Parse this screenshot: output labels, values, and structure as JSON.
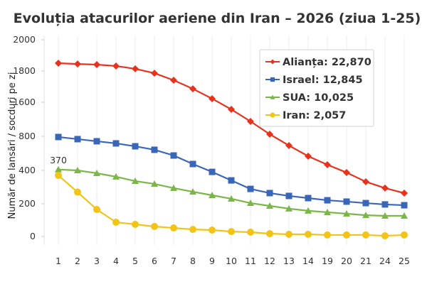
{
  "chart_data": {
    "type": "line",
    "title": "Evoluția atacurilor aeriene din Iran – 2026 (ziua 1-25)",
    "xlabel": "",
    "ylabel": "Număr de lansări / socduri pe zi",
    "categories": [
      "1",
      "2",
      "3",
      "4",
      "5",
      "6",
      "7",
      "8",
      "9",
      "10",
      "11",
      "12",
      "13",
      "14",
      "19",
      "20",
      "21",
      "24",
      "25"
    ],
    "y_ticks": [
      0,
      200,
      400,
      800,
      1600,
      1800,
      2000
    ],
    "y_tick_labels": [
      "0",
      "200",
      "400",
      "800",
      "1600",
      "1800",
      "2000"
    ],
    "ylim": [
      0,
      2000
    ],
    "grid": "vertical",
    "legend_position": "top-right",
    "annotation": "370",
    "series": [
      {
        "name": "Alianța: 22,870",
        "color": "#e8321e",
        "marker": "diamond",
        "values": [
          1850,
          1845,
          1841,
          1832,
          1814,
          1786,
          1741,
          1686,
          1623,
          1433,
          1150,
          850,
          692,
          567,
          467,
          387,
          332,
          294,
          264
        ]
      },
      {
        "name": "Israel: 12,845",
        "color": "#3a66b8",
        "marker": "square",
        "values": [
          792,
          767,
          742,
          717,
          683,
          642,
          575,
          475,
          391,
          340,
          289,
          264,
          247,
          234,
          221,
          213,
          204,
          196,
          191
        ]
      },
      {
        "name": "SUA: 10,025",
        "color": "#7ab648",
        "marker": "triangle",
        "values": [
          410,
          400,
          383,
          362,
          336,
          319,
          294,
          272,
          251,
          230,
          204,
          187,
          170,
          157,
          148,
          139,
          130,
          126,
          126
        ]
      },
      {
        "name": "Iran: 2,057",
        "color": "#f2c418",
        "marker": "circle",
        "values": [
          370,
          270,
          165,
          87,
          74,
          61,
          52,
          43,
          39,
          30,
          26,
          17,
          13,
          13,
          9,
          9,
          9,
          4,
          9
        ]
      }
    ]
  }
}
